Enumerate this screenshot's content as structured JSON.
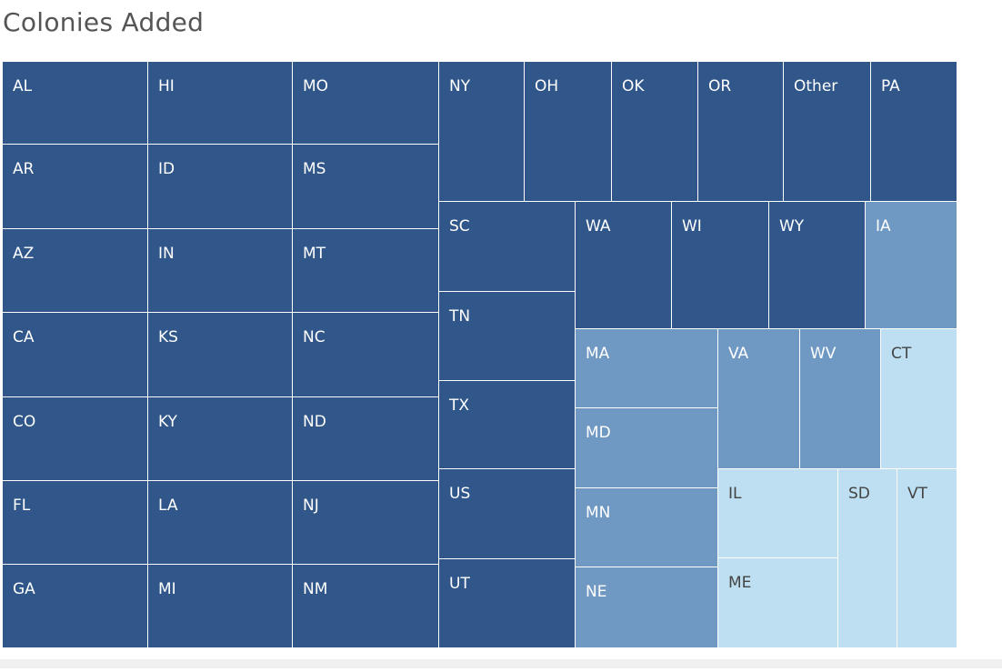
{
  "chart_data": {
    "type": "treemap",
    "title": "Colonies Added",
    "color_levels": {
      "high": "#31578a",
      "medium": "#6f99c3",
      "low": "#bddff1"
    },
    "label_colors": {
      "high": "#ffffff",
      "medium": "#ffffff",
      "low": "#444444"
    },
    "tiles": [
      {
        "label": "AL",
        "level": "high"
      },
      {
        "label": "AR",
        "level": "high"
      },
      {
        "label": "AZ",
        "level": "high"
      },
      {
        "label": "CA",
        "level": "high"
      },
      {
        "label": "CO",
        "level": "high"
      },
      {
        "label": "FL",
        "level": "high"
      },
      {
        "label": "GA",
        "level": "high"
      },
      {
        "label": "HI",
        "level": "high"
      },
      {
        "label": "ID",
        "level": "high"
      },
      {
        "label": "IN",
        "level": "high"
      },
      {
        "label": "KS",
        "level": "high"
      },
      {
        "label": "KY",
        "level": "high"
      },
      {
        "label": "LA",
        "level": "high"
      },
      {
        "label": "MI",
        "level": "high"
      },
      {
        "label": "MO",
        "level": "high"
      },
      {
        "label": "MS",
        "level": "high"
      },
      {
        "label": "MT",
        "level": "high"
      },
      {
        "label": "NC",
        "level": "high"
      },
      {
        "label": "ND",
        "level": "high"
      },
      {
        "label": "NJ",
        "level": "high"
      },
      {
        "label": "NM",
        "level": "high"
      },
      {
        "label": "NY",
        "level": "high"
      },
      {
        "label": "OH",
        "level": "high"
      },
      {
        "label": "OK",
        "level": "high"
      },
      {
        "label": "OR",
        "level": "high"
      },
      {
        "label": "Other",
        "level": "high"
      },
      {
        "label": "PA",
        "level": "high"
      },
      {
        "label": "SC",
        "level": "high"
      },
      {
        "label": "TN",
        "level": "high"
      },
      {
        "label": "TX",
        "level": "high"
      },
      {
        "label": "US",
        "level": "high"
      },
      {
        "label": "UT",
        "level": "high"
      },
      {
        "label": "WA",
        "level": "high"
      },
      {
        "label": "WI",
        "level": "high"
      },
      {
        "label": "WY",
        "level": "high"
      },
      {
        "label": "IA",
        "level": "medium"
      },
      {
        "label": "MA",
        "level": "medium"
      },
      {
        "label": "MD",
        "level": "medium"
      },
      {
        "label": "MN",
        "level": "medium"
      },
      {
        "label": "NE",
        "level": "medium"
      },
      {
        "label": "VA",
        "level": "medium"
      },
      {
        "label": "WV",
        "level": "medium"
      },
      {
        "label": "CT",
        "level": "low"
      },
      {
        "label": "IL",
        "level": "low"
      },
      {
        "label": "ME",
        "level": "low"
      },
      {
        "label": "SD",
        "level": "low"
      },
      {
        "label": "VT",
        "level": "low"
      }
    ]
  }
}
